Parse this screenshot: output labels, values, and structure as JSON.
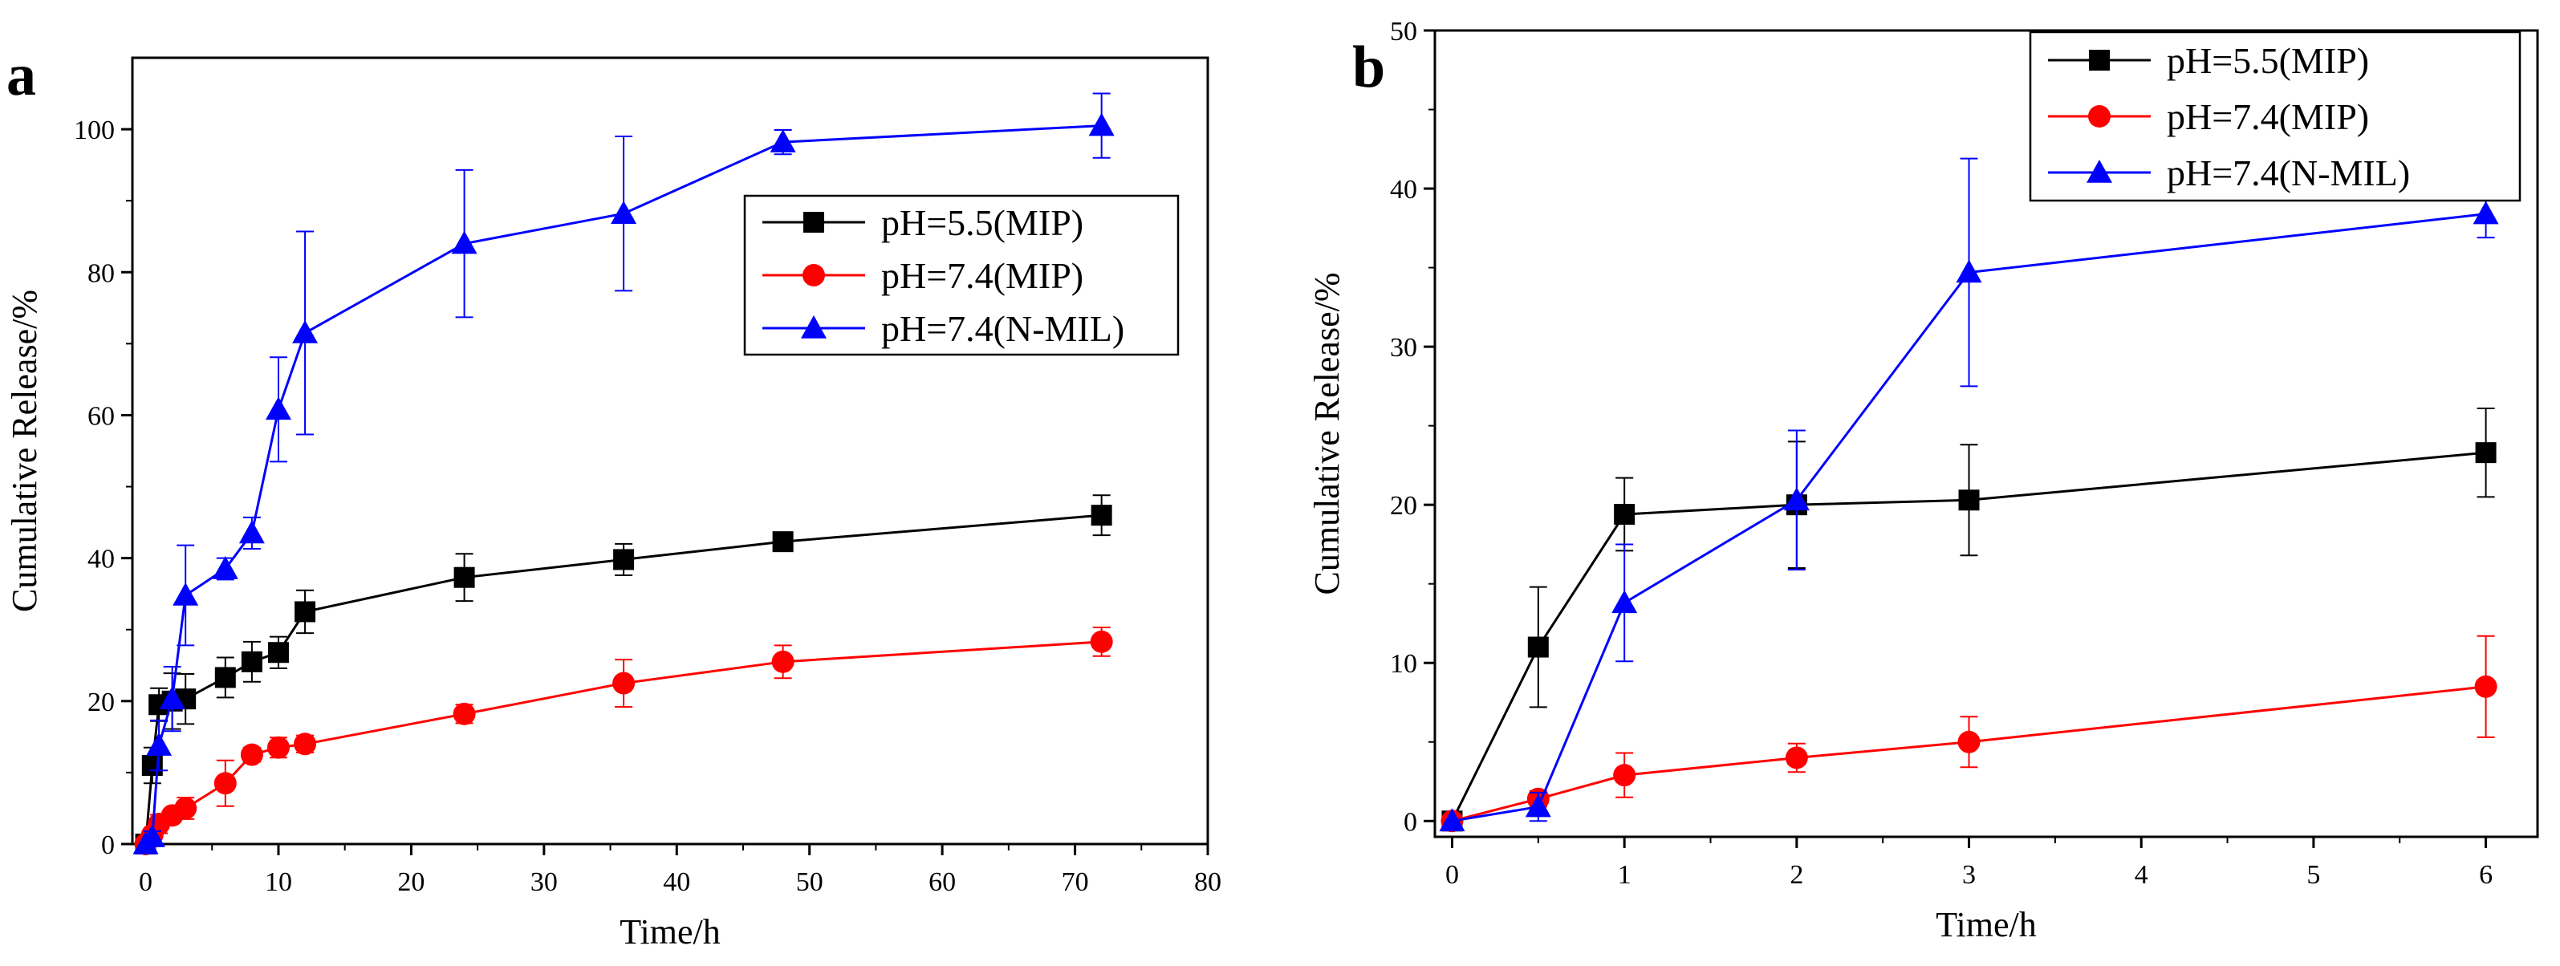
{
  "chart_data": [
    {
      "type": "line",
      "panel_label": "a",
      "xlabel": "Time/h",
      "ylabel": "Cumulative Release/%",
      "xlim": [
        -1,
        80
      ],
      "ylim": [
        0,
        110
      ],
      "xticks": [
        0,
        10,
        20,
        30,
        40,
        50,
        60,
        70,
        80
      ],
      "yticks": [
        0,
        20,
        40,
        60,
        80,
        100
      ],
      "legend_position": "upper-right",
      "series": [
        {
          "name": "pH=5.5(MIP)",
          "color": "#000000",
          "marker": "square",
          "x": [
            0,
            0.5,
            1,
            2,
            3,
            6,
            8,
            10,
            12,
            24,
            36,
            48,
            72
          ],
          "y": [
            0,
            11,
            19.5,
            20,
            20.3,
            23.3,
            25.5,
            26.8,
            32.5,
            37.3,
            39.8,
            42.3,
            46
          ],
          "err": [
            0,
            2.5,
            2.3,
            3.9,
            3.5,
            2.8,
            2.8,
            2.2,
            3,
            3.3,
            2.2,
            1,
            2.8
          ]
        },
        {
          "name": "pH=7.4(MIP)",
          "color": "#ff0000",
          "marker": "circle",
          "x": [
            0,
            0.5,
            1,
            2,
            3,
            6,
            8,
            10,
            12,
            24,
            36,
            48,
            72
          ],
          "y": [
            0,
            1.3,
            2.8,
            4,
            5,
            8.5,
            12.5,
            13.5,
            14,
            18.2,
            22.5,
            25.5,
            28.3
          ],
          "err": [
            0,
            0.6,
            1.3,
            0.9,
            1.5,
            3.2,
            1,
            1.4,
            1.2,
            1.3,
            3.3,
            2.3,
            2
          ]
        },
        {
          "name": "pH=7.4(N-MIL)",
          "color": "#0000ff",
          "marker": "triangle",
          "x": [
            0,
            0.5,
            1,
            2,
            3,
            6,
            8,
            10,
            12,
            24,
            36,
            48,
            72
          ],
          "y": [
            0,
            1,
            13.8,
            20.3,
            34.8,
            38.5,
            43.5,
            60.8,
            71.5,
            84,
            88.2,
            98.2,
            100.5
          ],
          "err": [
            0,
            0.8,
            3.5,
            4.5,
            7,
            1.5,
            2.2,
            7.3,
            14.2,
            10.3,
            10.8,
            1.7,
            4.5
          ]
        }
      ]
    },
    {
      "type": "line",
      "panel_label": "b",
      "xlabel": "Time/h",
      "ylabel": "Cumulative Release/%",
      "xlim": [
        -0.1,
        6.3
      ],
      "ylim": [
        -1,
        50
      ],
      "xticks": [
        0,
        1,
        2,
        3,
        4,
        5,
        6
      ],
      "yticks": [
        0,
        10,
        20,
        30,
        40,
        50
      ],
      "legend_position": "top-right",
      "series": [
        {
          "name": "pH=5.5(MIP)",
          "color": "#000000",
          "marker": "square",
          "x": [
            0,
            0.5,
            1,
            2,
            3,
            6
          ],
          "y": [
            0,
            11,
            19.4,
            20,
            20.3,
            23.3
          ],
          "err": [
            0,
            3.8,
            2.3,
            4,
            3.5,
            2.8
          ]
        },
        {
          "name": "pH=7.4(MIP)",
          "color": "#ff0000",
          "marker": "circle",
          "x": [
            0,
            0.5,
            1,
            2,
            3,
            6
          ],
          "y": [
            0,
            1.4,
            2.9,
            4,
            5,
            8.5
          ],
          "err": [
            0,
            0.5,
            1.4,
            0.9,
            1.6,
            3.2
          ]
        },
        {
          "name": "pH=7.4(N-MIL)",
          "color": "#0000ff",
          "marker": "triangle",
          "x": [
            0,
            0.5,
            1,
            2,
            3,
            6
          ],
          "y": [
            0,
            0.9,
            13.8,
            20.3,
            34.7,
            38.4
          ],
          "err": [
            0,
            0.9,
            3.7,
            4.4,
            7.2,
            1.5
          ]
        }
      ]
    }
  ]
}
